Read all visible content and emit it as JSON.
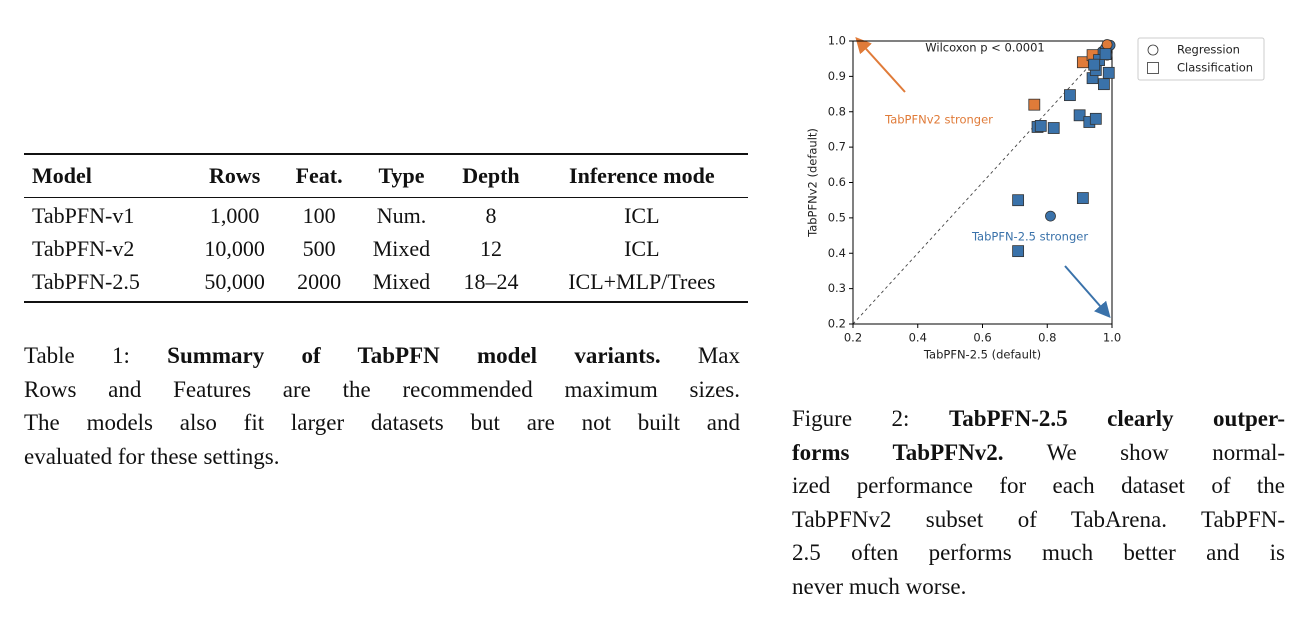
{
  "table": {
    "columns": [
      "Model",
      "Rows",
      "Feat.",
      "Type",
      "Depth",
      "Inference mode"
    ],
    "rows": [
      [
        "TabPFN-v1",
        "1,000",
        "100",
        "Num.",
        "8",
        "ICL"
      ],
      [
        "TabPFN-v2",
        "10,000",
        "500",
        "Mixed",
        "12",
        "ICL"
      ],
      [
        "TabPFN-2.5",
        "50,000",
        "2000",
        "Mixed",
        "18–24",
        "ICL+MLP/Trees"
      ]
    ]
  },
  "table_caption": {
    "lines": [
      [
        {
          "text": "Table 1: ",
          "bold": false
        },
        {
          "text": "Summary of TabPFN model variants.",
          "bold": true
        },
        {
          "text": " Max",
          "bold": false
        }
      ],
      [
        {
          "text": "Rows and Features are the recommended maximum sizes.",
          "bold": false
        }
      ],
      [
        {
          "text": "The models also fit larger datasets but are not built and",
          "bold": false
        }
      ],
      [
        {
          "text": "evaluated for these settings.",
          "bold": false
        }
      ]
    ]
  },
  "chart_data": {
    "type": "scatter",
    "xlabel": "TabPFN-2.5 (default)",
    "ylabel": "TabPFNv2 (default)",
    "xlim": [
      0.2,
      1.0
    ],
    "ylim": [
      0.2,
      1.0
    ],
    "xticks": [
      0.2,
      0.4,
      0.6,
      0.8,
      {
        "value": 1,
        "label": "1.0"
      }
    ],
    "yticks": [
      0.2,
      0.3,
      0.4,
      0.5,
      0.6,
      0.7,
      0.8,
      0.9,
      {
        "value": 1,
        "label": "1.0"
      }
    ],
    "stat_text": "Wilcoxon p < 0.0001",
    "annotations": [
      {
        "text": "TabPFNv2 stronger",
        "color": "#e07b39"
      },
      {
        "text": "TabPFN-2.5 stronger",
        "color": "#3a72aa"
      }
    ],
    "series": [
      {
        "name": "Regression",
        "marker": "circle",
        "x": [
          0.81,
          0.97,
          0.98,
          0.994,
          0.985,
          0.985
        ],
        "values": [
          0.505,
          0.97,
          0.98,
          0.988,
          0.96,
          0.99
        ]
      },
      {
        "name": "Classification",
        "marker": "square",
        "x": [
          0.76,
          0.91,
          0.94,
          0.77,
          0.78,
          0.82,
          0.87,
          0.9,
          0.93,
          0.95,
          0.94,
          0.95,
          0.96,
          0.98,
          0.99,
          0.975,
          0.71,
          0.91,
          0.71,
          0.945
        ],
        "values": [
          0.82,
          0.94,
          0.96,
          0.757,
          0.76,
          0.754,
          0.847,
          0.79,
          0.771,
          0.78,
          0.895,
          0.918,
          0.946,
          0.963,
          0.91,
          0.878,
          0.55,
          0.556,
          0.406,
          0.933
        ]
      }
    ]
  },
  "figure_caption": {
    "lines": [
      [
        {
          "text": "Figure 2: ",
          "bold": false
        },
        {
          "text": "TabPFN-2.5 clearly outper-",
          "bold": true
        }
      ],
      [
        {
          "text": "forms TabPFNv2.",
          "bold": true
        },
        {
          "text": " We show normal-",
          "bold": false
        }
      ],
      [
        {
          "text": "ized performance for each dataset of the",
          "bold": false
        }
      ],
      [
        {
          "text": "TabPFNv2 subset of TabArena. TabPFN-",
          "bold": false
        }
      ],
      [
        {
          "text": "2.5 often performs much better and is",
          "bold": false
        }
      ],
      [
        {
          "text": "never much worse.",
          "bold": false
        }
      ]
    ]
  }
}
